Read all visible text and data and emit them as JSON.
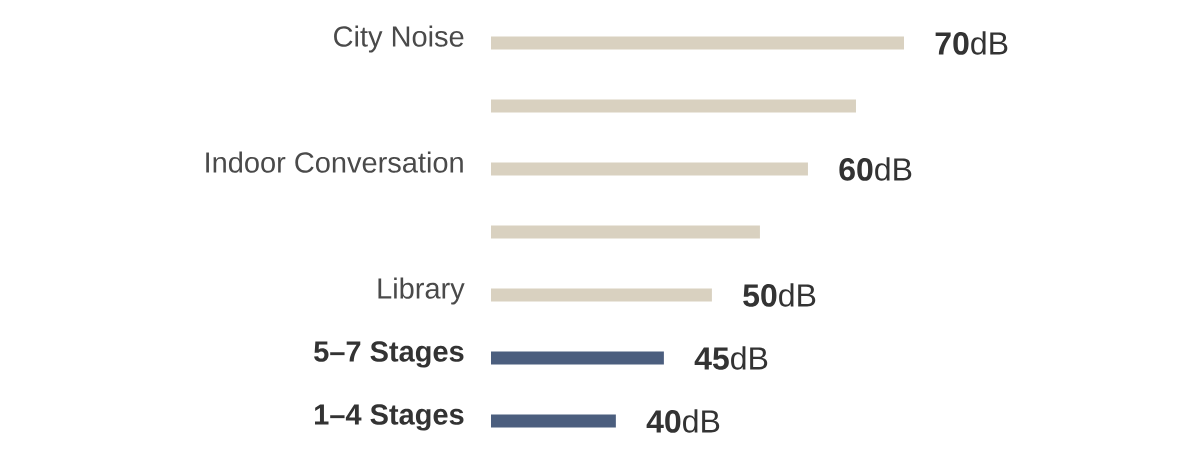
{
  "chart_data": {
    "type": "bar",
    "orientation": "horizontal",
    "categories": [
      "City Noise",
      null,
      "Indoor Conversation",
      null,
      "Library",
      "5–7 Stages",
      "1–4 Stages"
    ],
    "values": [
      70,
      65,
      60,
      55,
      50,
      45,
      40
    ],
    "colors": [
      "#d9d1c0",
      "#d9d1c0",
      "#d9d1c0",
      "#d9d1c0",
      "#d9d1c0",
      "#4b5e7e",
      "#4b5e7e"
    ],
    "value_labels": [
      "**70**dB",
      null,
      "**60**dB",
      null,
      "**50**dB",
      "**45**dB",
      "**40**dB"
    ],
    "xlim": [
      27,
      70
    ],
    "tick_labels": "y"
  }
}
